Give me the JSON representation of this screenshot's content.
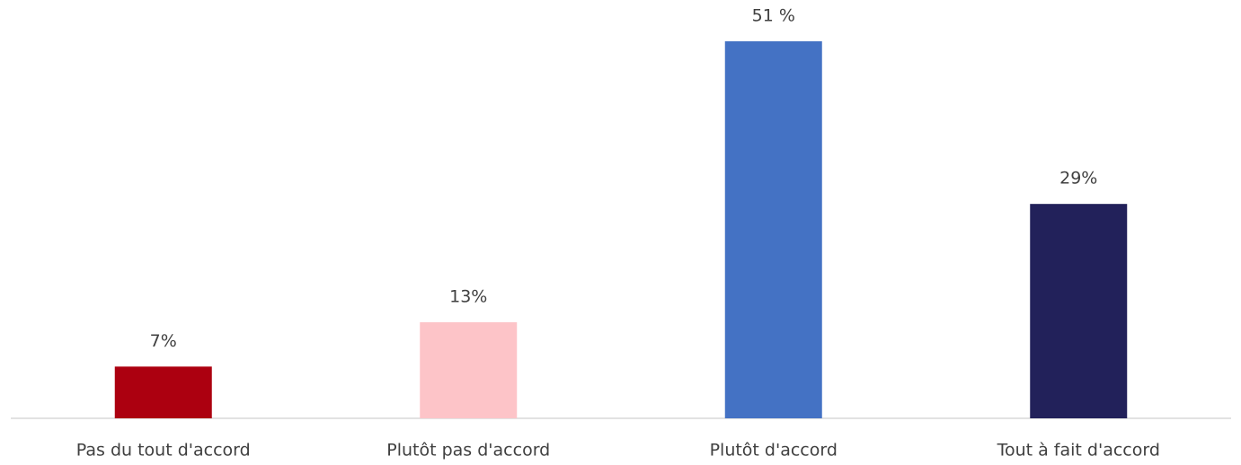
{
  "chart_data": {
    "type": "bar",
    "categories": [
      "Pas du tout d'accord",
      "Plutôt pas d'accord",
      "Plutôt d'accord",
      "Tout à fait d'accord"
    ],
    "values": [
      7,
      13,
      51,
      29
    ],
    "value_labels": [
      "7%",
      "13%",
      "51 %",
      "29%"
    ],
    "colors": [
      "#ac0010",
      "#fdc4c8",
      "#4472c4",
      "#22215a"
    ]
  }
}
